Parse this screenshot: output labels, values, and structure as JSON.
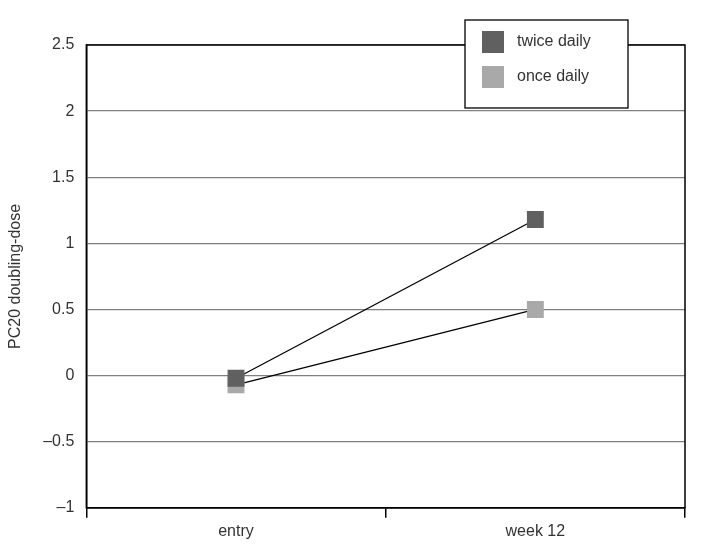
{
  "chart_data": {
    "type": "line",
    "categories": [
      "entry",
      "week 12"
    ],
    "y_label": "PC20 doubling-dose",
    "series": [
      {
        "name": "twice daily",
        "color": "#606060",
        "values": [
          -0.02,
          1.18
        ],
        "marker": "square",
        "line_style": "solid"
      },
      {
        "name": "once daily",
        "color": "#a9a9a9",
        "values": [
          -0.07,
          0.5
        ],
        "marker": "square",
        "line_style": "solid"
      }
    ],
    "ylim": [
      -1,
      2.5
    ],
    "yticks": [
      {
        "value": -1,
        "label": "–1"
      },
      {
        "value": -0.5,
        "label": "–0.5"
      },
      0,
      0.5,
      1,
      1.5,
      2,
      2.5
    ],
    "grid": true,
    "legend": "upper right"
  }
}
